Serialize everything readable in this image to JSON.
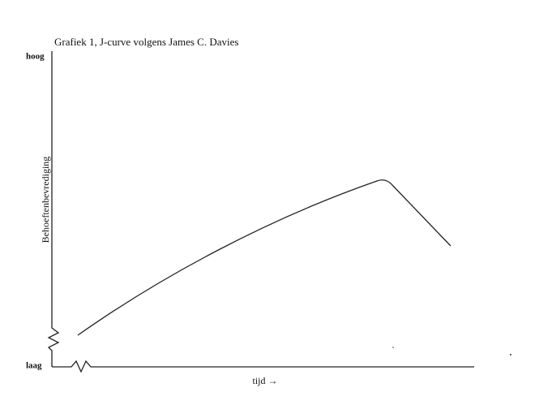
{
  "title": "Grafiek 1, J-curve volgens James C. Davies",
  "y_axis": {
    "label": "Behoeftenbevrediging",
    "top": "hoog",
    "bottom": "laag"
  },
  "x_axis": {
    "label": "tijd →"
  }
}
